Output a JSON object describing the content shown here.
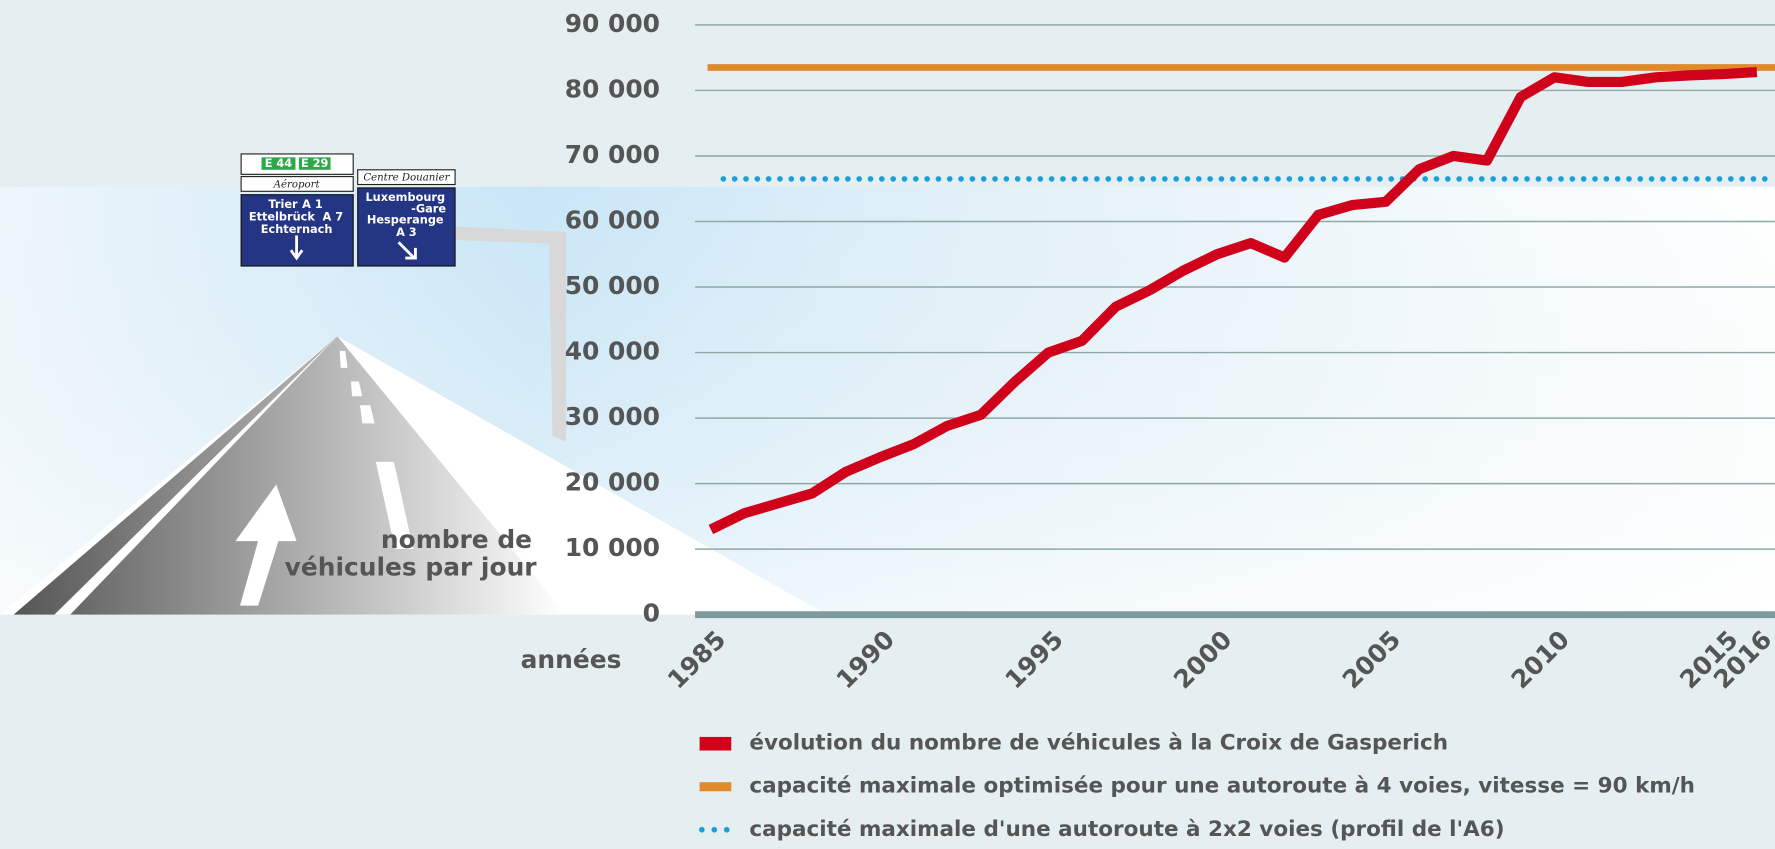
{
  "chart_data": {
    "type": "line",
    "x": [
      1985,
      1986,
      1987,
      1988,
      1989,
      1990,
      1991,
      1992,
      1993,
      1994,
      1995,
      1996,
      1997,
      1998,
      1999,
      2000,
      2001,
      2002,
      2003,
      2004,
      2005,
      2006,
      2007,
      2008,
      2009,
      2010,
      2011,
      2012,
      2013,
      2014,
      2015,
      2016
    ],
    "series": [
      {
        "name": "évolution du nombre de véhicules à la Croix de Gasperich",
        "color": "#d0021b",
        "values": [
          13000,
          15500,
          17000,
          18500,
          21800,
          24000,
          26000,
          28800,
          30500,
          35500,
          40000,
          41800,
          47000,
          49500,
          52500,
          55000,
          56700,
          54500,
          61000,
          62500,
          63000,
          68000,
          70000,
          69300,
          79000,
          82000,
          81300,
          81300,
          82000,
          82300,
          82500,
          82800
        ]
      }
    ],
    "reference_lines": [
      {
        "name": "capacité maximale optimisée pour une autoroute à 4 voies, vitesse = 90 km/h",
        "color": "#e08a2c",
        "value": 83500,
        "style": "solid"
      },
      {
        "name": "capacité maximale d'une autoroute à 2x2 voies (profil de l'A6)",
        "color": "#1a9fd8",
        "value": 66500,
        "style": "dotted"
      }
    ],
    "xlim": [
      1985,
      2016
    ],
    "xticks": [
      1985,
      1990,
      1995,
      2000,
      2005,
      2010,
      2015,
      2016
    ],
    "xtick_colors": [
      "#555555",
      "#c8102e",
      "#555555",
      "#c8102e",
      "#555555",
      "#c8102e",
      "#555555",
      "#c8102e"
    ],
    "ylim": [
      0,
      90000
    ],
    "yticks": [
      0,
      {
        "value": 10000,
        "label": "10 000"
      },
      {
        "value": 20000,
        "label": "20 000"
      },
      {
        "value": 30000,
        "label": "30 000"
      },
      {
        "value": 40000,
        "label": "40 000"
      },
      {
        "value": 50000,
        "label": "50 000"
      },
      {
        "value": 60000,
        "label": "60 000"
      },
      {
        "value": 70000,
        "label": "70 000"
      },
      {
        "value": 80000,
        "label": "80 000"
      },
      {
        "value": 90000,
        "label": "90 000"
      }
    ],
    "grid": true,
    "xlabel": "années",
    "ylabel": [
      "nombre de",
      "véhicules par jour"
    ]
  },
  "illustration": {
    "signs": {
      "route_numbers": [
        "E 44",
        "E 29"
      ],
      "airport": "Aéroport",
      "customs": "Centre Douanier",
      "left": [
        [
          "Trier",
          "A 1"
        ],
        [
          "Ettelbrück",
          "A 7"
        ],
        [
          "Echternach"
        ]
      ],
      "right": [
        "Luxembourg",
        "-Gare",
        "Hesperange",
        "A 3"
      ]
    }
  }
}
